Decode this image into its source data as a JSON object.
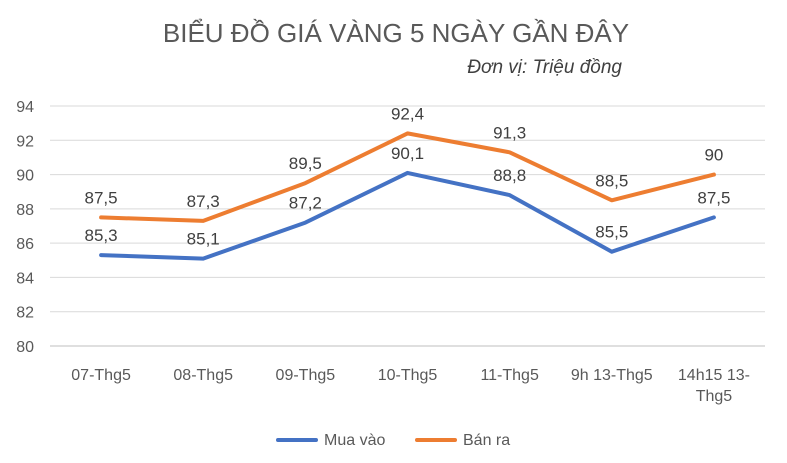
{
  "chart_data": {
    "type": "line",
    "title": "BIỂU ĐỒ GIÁ VÀNG 5 NGÀY GẦN ĐÂY",
    "subtitle": "Đơn vị: Triệu đồng",
    "categories": [
      "07-Thg5",
      "08-Thg5",
      "09-Thg5",
      "10-Thg5",
      "11-Thg5",
      "9h 13-Thg5",
      "14h15 13-Thg5"
    ],
    "series": [
      {
        "name": "Mua vào",
        "color": "#4472C4",
        "values": [
          85.3,
          85.1,
          87.2,
          90.1,
          88.8,
          85.5,
          87.5
        ],
        "labels": [
          "85,3",
          "85,1",
          "87,2",
          "90,1",
          "88,8",
          "85,5",
          "87,5"
        ]
      },
      {
        "name": "Bán ra",
        "color": "#ED7D31",
        "values": [
          87.5,
          87.3,
          89.5,
          92.4,
          91.3,
          88.5,
          90
        ],
        "labels": [
          "87,5",
          "87,3",
          "89,5",
          "92,4",
          "91,3",
          "88,5",
          "90"
        ]
      }
    ],
    "ylim": [
      80,
      94
    ],
    "yticks": [
      80,
      82,
      84,
      86,
      88,
      90,
      92,
      94
    ],
    "grid": true,
    "legend_position": "bottom"
  }
}
